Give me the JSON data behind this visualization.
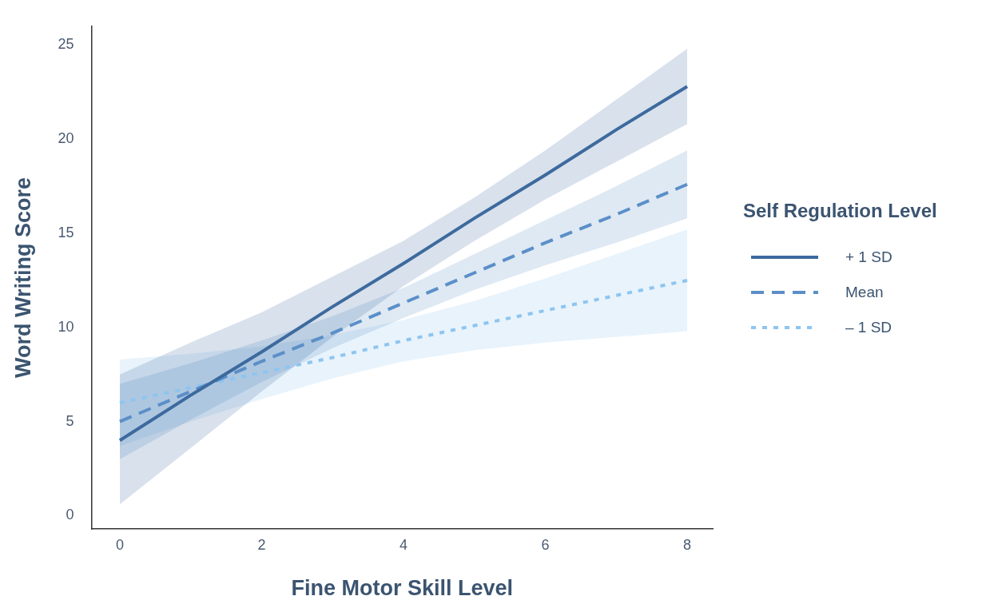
{
  "chart_data": {
    "type": "line",
    "xlabel": "Fine Motor Skill Level",
    "ylabel": "Word Writing Score",
    "legend_title": "Self Regulation Level",
    "x": [
      0,
      1,
      2,
      3,
      4,
      5,
      6,
      7,
      8
    ],
    "series": [
      {
        "name": "+ 1 SD",
        "color": "#3d6a9e",
        "line_style": "solid",
        "values": [
          4.0,
          6.4,
          8.7,
          11.1,
          13.4,
          15.8,
          18.1,
          20.5,
          22.8
        ],
        "lower": [
          0.6,
          3.6,
          6.6,
          9.5,
          12.2,
          14.6,
          16.8,
          18.8,
          20.8
        ],
        "upper": [
          7.5,
          9.2,
          10.8,
          12.7,
          14.6,
          16.9,
          19.4,
          22.1,
          24.8
        ]
      },
      {
        "name": "Mean",
        "color": "#5b8fc8",
        "line_style": "dashed",
        "values": [
          5.0,
          6.6,
          8.2,
          9.7,
          11.3,
          12.9,
          14.5,
          16.0,
          17.6
        ],
        "lower": [
          3.0,
          5.1,
          7.1,
          8.9,
          10.5,
          12.0,
          13.3,
          14.5,
          15.8
        ],
        "upper": [
          7.0,
          8.1,
          9.3,
          10.6,
          12.1,
          13.9,
          15.7,
          17.5,
          19.4
        ]
      },
      {
        "name": "– 1 SD",
        "color": "#8ec5f0",
        "line_style": "dotted",
        "values": [
          6.0,
          6.8,
          7.6,
          8.4,
          9.3,
          10.1,
          10.9,
          11.7,
          12.5
        ],
        "lower": [
          3.7,
          5.0,
          6.2,
          7.3,
          8.2,
          8.8,
          9.2,
          9.5,
          9.8
        ],
        "upper": [
          8.3,
          8.6,
          9.0,
          9.6,
          10.4,
          11.4,
          12.6,
          13.9,
          15.2
        ]
      }
    ],
    "xlim": [
      -0.4,
      8.36
    ],
    "xticks": [
      0,
      2,
      4,
      6,
      8
    ],
    "ylim": [
      -0.7,
      26
    ],
    "yticks": [
      0,
      5,
      10,
      15,
      20,
      25
    ],
    "grid": false,
    "legend": "right",
    "marker": "none"
  }
}
